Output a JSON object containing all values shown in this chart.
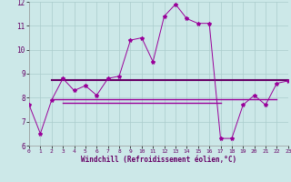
{
  "xlabel": "Windchill (Refroidissement éolien,°C)",
  "background_color": "#cce8e8",
  "grid_color": "#aacccc",
  "line_color": "#990099",
  "line_color2": "#660066",
  "hours": [
    0,
    1,
    2,
    3,
    4,
    5,
    6,
    7,
    8,
    9,
    10,
    11,
    12,
    13,
    14,
    15,
    16,
    17,
    18,
    19,
    20,
    21,
    22,
    23
  ],
  "values": [
    7.7,
    6.5,
    7.9,
    8.8,
    8.3,
    8.5,
    8.1,
    8.8,
    8.9,
    10.4,
    10.5,
    9.5,
    11.4,
    11.9,
    11.3,
    11.1,
    11.1,
    6.3,
    6.3,
    7.7,
    8.1,
    7.7,
    8.6,
    8.7
  ],
  "hlines": [
    {
      "y": 8.73,
      "xstart": 2,
      "xend": 23,
      "lw": 1.5,
      "color": "#660066"
    },
    {
      "y": 7.93,
      "xstart": 2,
      "xend": 22,
      "lw": 1.0,
      "color": "#990099"
    },
    {
      "y": 7.78,
      "xstart": 3,
      "xend": 17,
      "lw": 1.0,
      "color": "#990099"
    }
  ],
  "ylim": [
    6,
    12
  ],
  "xlim": [
    0,
    23
  ],
  "yticks": [
    6,
    7,
    8,
    9,
    10,
    11,
    12
  ],
  "xticks": [
    0,
    1,
    2,
    3,
    4,
    5,
    6,
    7,
    8,
    9,
    10,
    11,
    12,
    13,
    14,
    15,
    16,
    17,
    18,
    19,
    20,
    21,
    22,
    23
  ]
}
